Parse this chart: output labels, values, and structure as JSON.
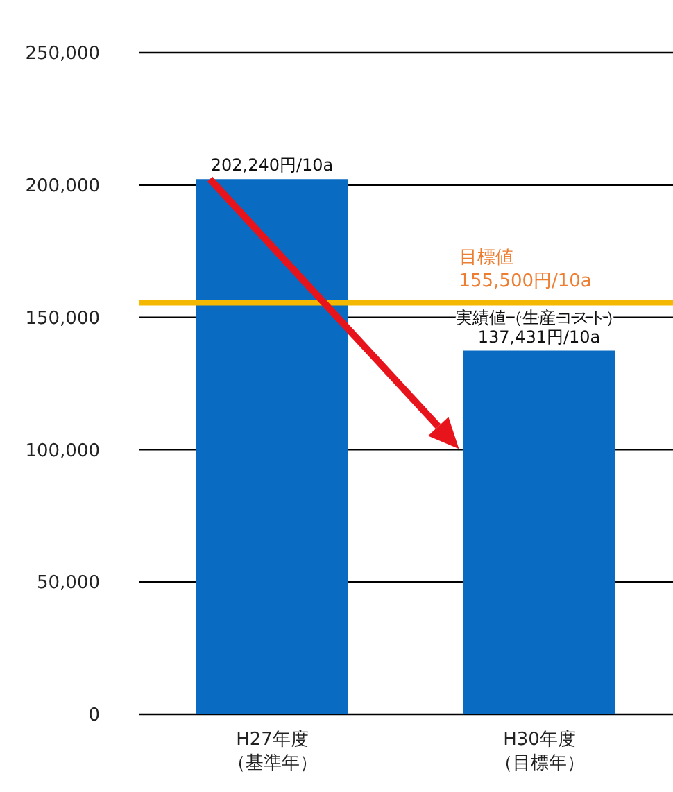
{
  "chart_data": {
    "type": "bar",
    "categories": [
      "H27年度（基準年）",
      "H30年度（目標年）"
    ],
    "values": [
      202240,
      137431
    ],
    "color": "#0a6bc2",
    "value_labels": [
      "202,240円/10a",
      "実績値（生産コスト）\n137,431円/10a"
    ],
    "ylim": [
      0,
      250000
    ],
    "yticks": [
      0,
      {
        "value": 50000,
        "label": "50,000"
      },
      {
        "value": 100000,
        "label": "100,000"
      },
      {
        "value": 150000,
        "label": "150,000"
      },
      {
        "value": 200000,
        "label": "200,000"
      },
      {
        "value": 250000,
        "label": "250,000"
      }
    ],
    "grid": "y",
    "ref_lines": [
      {
        "axis": "y",
        "value": 155500,
        "label": "目標値\n155,500円/10a",
        "color": "#f5b800"
      }
    ]
  }
}
